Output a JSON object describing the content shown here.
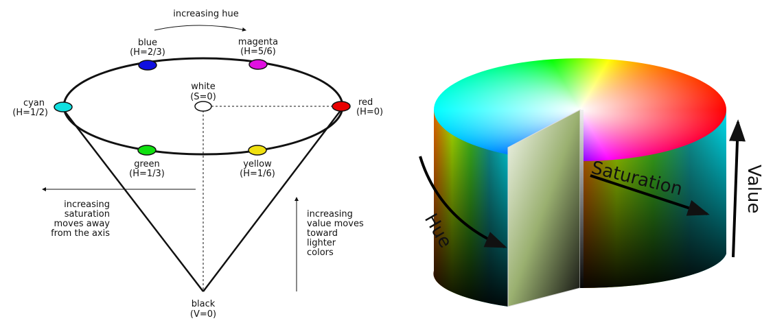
{
  "cone": {
    "top_label": "increasing hue",
    "points": [
      {
        "name": "blue",
        "hue": "(H=2/3)"
      },
      {
        "name": "magenta",
        "hue": "(H=5/6)"
      },
      {
        "name": "cyan",
        "hue": "(H=1/2)"
      },
      {
        "name": "red",
        "hue": "(H=0)"
      },
      {
        "name": "green",
        "hue": "(H=1/3)"
      },
      {
        "name": "yellow",
        "hue": "(H=1/6)"
      }
    ],
    "white": {
      "name": "white",
      "note": "(S=0)"
    },
    "black": {
      "name": "black",
      "note": "(V=0)"
    },
    "saturation_note": [
      "increasing",
      "saturation",
      "moves away",
      "from the axis"
    ],
    "value_note": [
      "increasing",
      "value moves",
      "toward",
      "lighter",
      "colors"
    ]
  },
  "cylinder": {
    "hue": "Hue",
    "saturation": "Saturation",
    "value": "Value"
  }
}
